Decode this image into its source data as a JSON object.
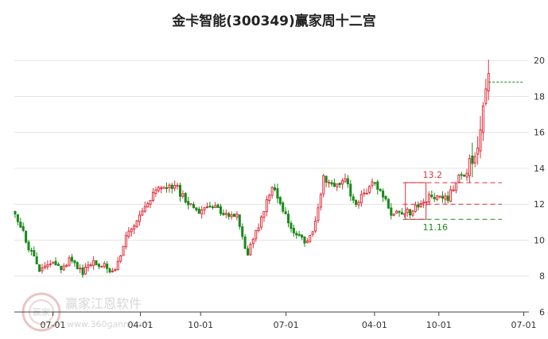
{
  "chart_data": {
    "type": "candlestick",
    "title": "金卡智能(300349)赢家周十二宫",
    "xlabel": "",
    "ylabel": "",
    "x_ticks": [
      "07-01",
      "04-01",
      "10-01",
      "07-01",
      "04-01",
      "10-01",
      "07-01"
    ],
    "y_ticks": [
      6,
      8,
      10,
      12,
      14,
      16,
      18,
      20
    ],
    "ylim": [
      6,
      21.6
    ],
    "grid": "horizontal",
    "up_color": "#e0303c",
    "down_color": "#1a8a1a",
    "price_path": [
      [
        0,
        11.6
      ],
      [
        0.03,
        9.3
      ],
      [
        0.05,
        8.3
      ],
      [
        0.07,
        8.7
      ],
      [
        0.09,
        8.4
      ],
      [
        0.11,
        9.0
      ],
      [
        0.13,
        8.1
      ],
      [
        0.15,
        8.8
      ],
      [
        0.17,
        8.6
      ],
      [
        0.19,
        8.2
      ],
      [
        0.22,
        10.4
      ],
      [
        0.25,
        11.8
      ],
      [
        0.28,
        12.9
      ],
      [
        0.31,
        13.1
      ],
      [
        0.33,
        12.2
      ],
      [
        0.36,
        11.6
      ],
      [
        0.39,
        11.8
      ],
      [
        0.41,
        11.3
      ],
      [
        0.43,
        11.5
      ],
      [
        0.45,
        9.0
      ],
      [
        0.47,
        10.6
      ],
      [
        0.5,
        13.1
      ],
      [
        0.52,
        11.6
      ],
      [
        0.55,
        10.1
      ],
      [
        0.57,
        9.8
      ],
      [
        0.59,
        11.8
      ],
      [
        0.6,
        13.5
      ],
      [
        0.62,
        12.9
      ],
      [
        0.64,
        13.6
      ],
      [
        0.66,
        12.0
      ],
      [
        0.68,
        12.7
      ],
      [
        0.7,
        13.2
      ],
      [
        0.72,
        12.3
      ],
      [
        0.73,
        11.3
      ],
      [
        0.75,
        11.5
      ],
      [
        0.77,
        11.6
      ],
      [
        0.79,
        12.0
      ],
      [
        0.81,
        12.5
      ],
      [
        0.83,
        12.2
      ],
      [
        0.84,
        12.3
      ],
      [
        0.86,
        13.4
      ],
      [
        0.88,
        13.6
      ],
      [
        0.9,
        15.8
      ],
      [
        0.91,
        17.6
      ],
      [
        0.92,
        18.8
      ]
    ],
    "annotations": [
      {
        "label": "13.2",
        "value": 13.2,
        "color": "#e0303c"
      },
      {
        "label": "",
        "value": 12.0,
        "color": "#e0303c"
      },
      {
        "label": "11.16",
        "value": 11.16,
        "color": "#1a8a1a"
      },
      {
        "label": "",
        "value": 18.8,
        "color": "#1a8a1a"
      }
    ]
  },
  "watermark": {
    "text": "赢家江恩软件",
    "url": "www.360gann.com",
    "logo_text": "赢家"
  }
}
